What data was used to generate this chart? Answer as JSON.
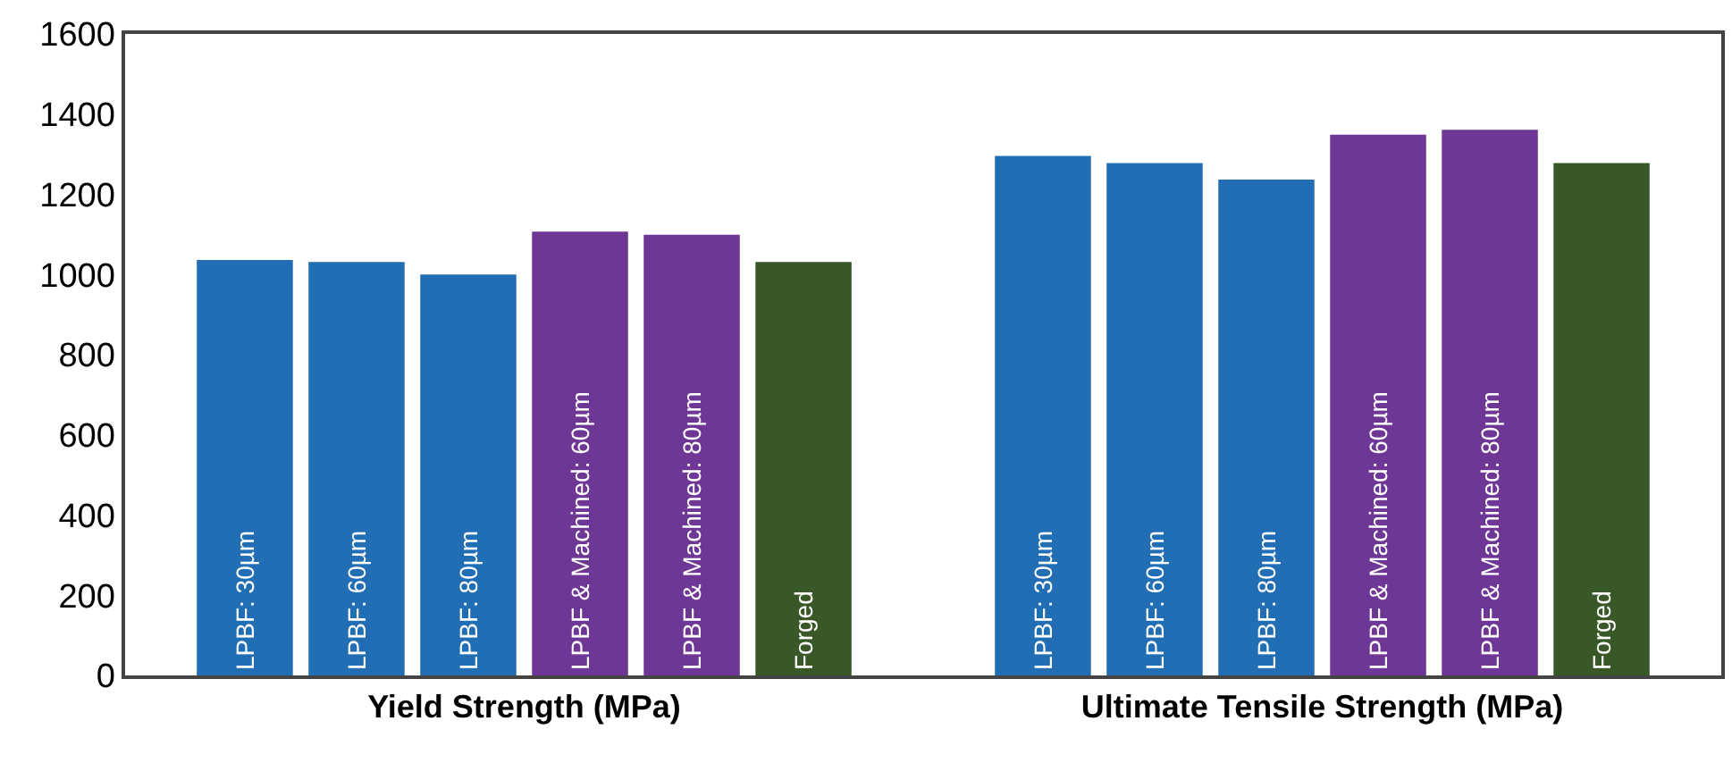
{
  "chart_data": {
    "type": "bar",
    "categories": [
      "Yield Strength (MPa)",
      "Ultimate Tensile Strength (MPa)"
    ],
    "series": [
      {
        "name": "LPBF: 30µm",
        "color": "#226eb4",
        "values": [
          1036,
          1296
        ]
      },
      {
        "name": "LPBF: 60µm",
        "color": "#226eb4",
        "values": [
          1031,
          1278
        ]
      },
      {
        "name": "LPBF: 80µm",
        "color": "#226eb4",
        "values": [
          1000,
          1237
        ]
      },
      {
        "name": "LPBF & Machined: 60µm",
        "color": "#6f3795",
        "values": [
          1107,
          1349
        ]
      },
      {
        "name": "LPBF & Machined: 80µm",
        "color": "#6f3795",
        "values": [
          1099,
          1361
        ]
      },
      {
        "name": "Forged",
        "color": "#3a5827",
        "values": [
          1031,
          1278
        ]
      }
    ],
    "ylim": [
      0,
      1600
    ],
    "yticks": [
      0,
      200,
      400,
      600,
      800,
      1000,
      1200,
      1400,
      1600
    ]
  }
}
